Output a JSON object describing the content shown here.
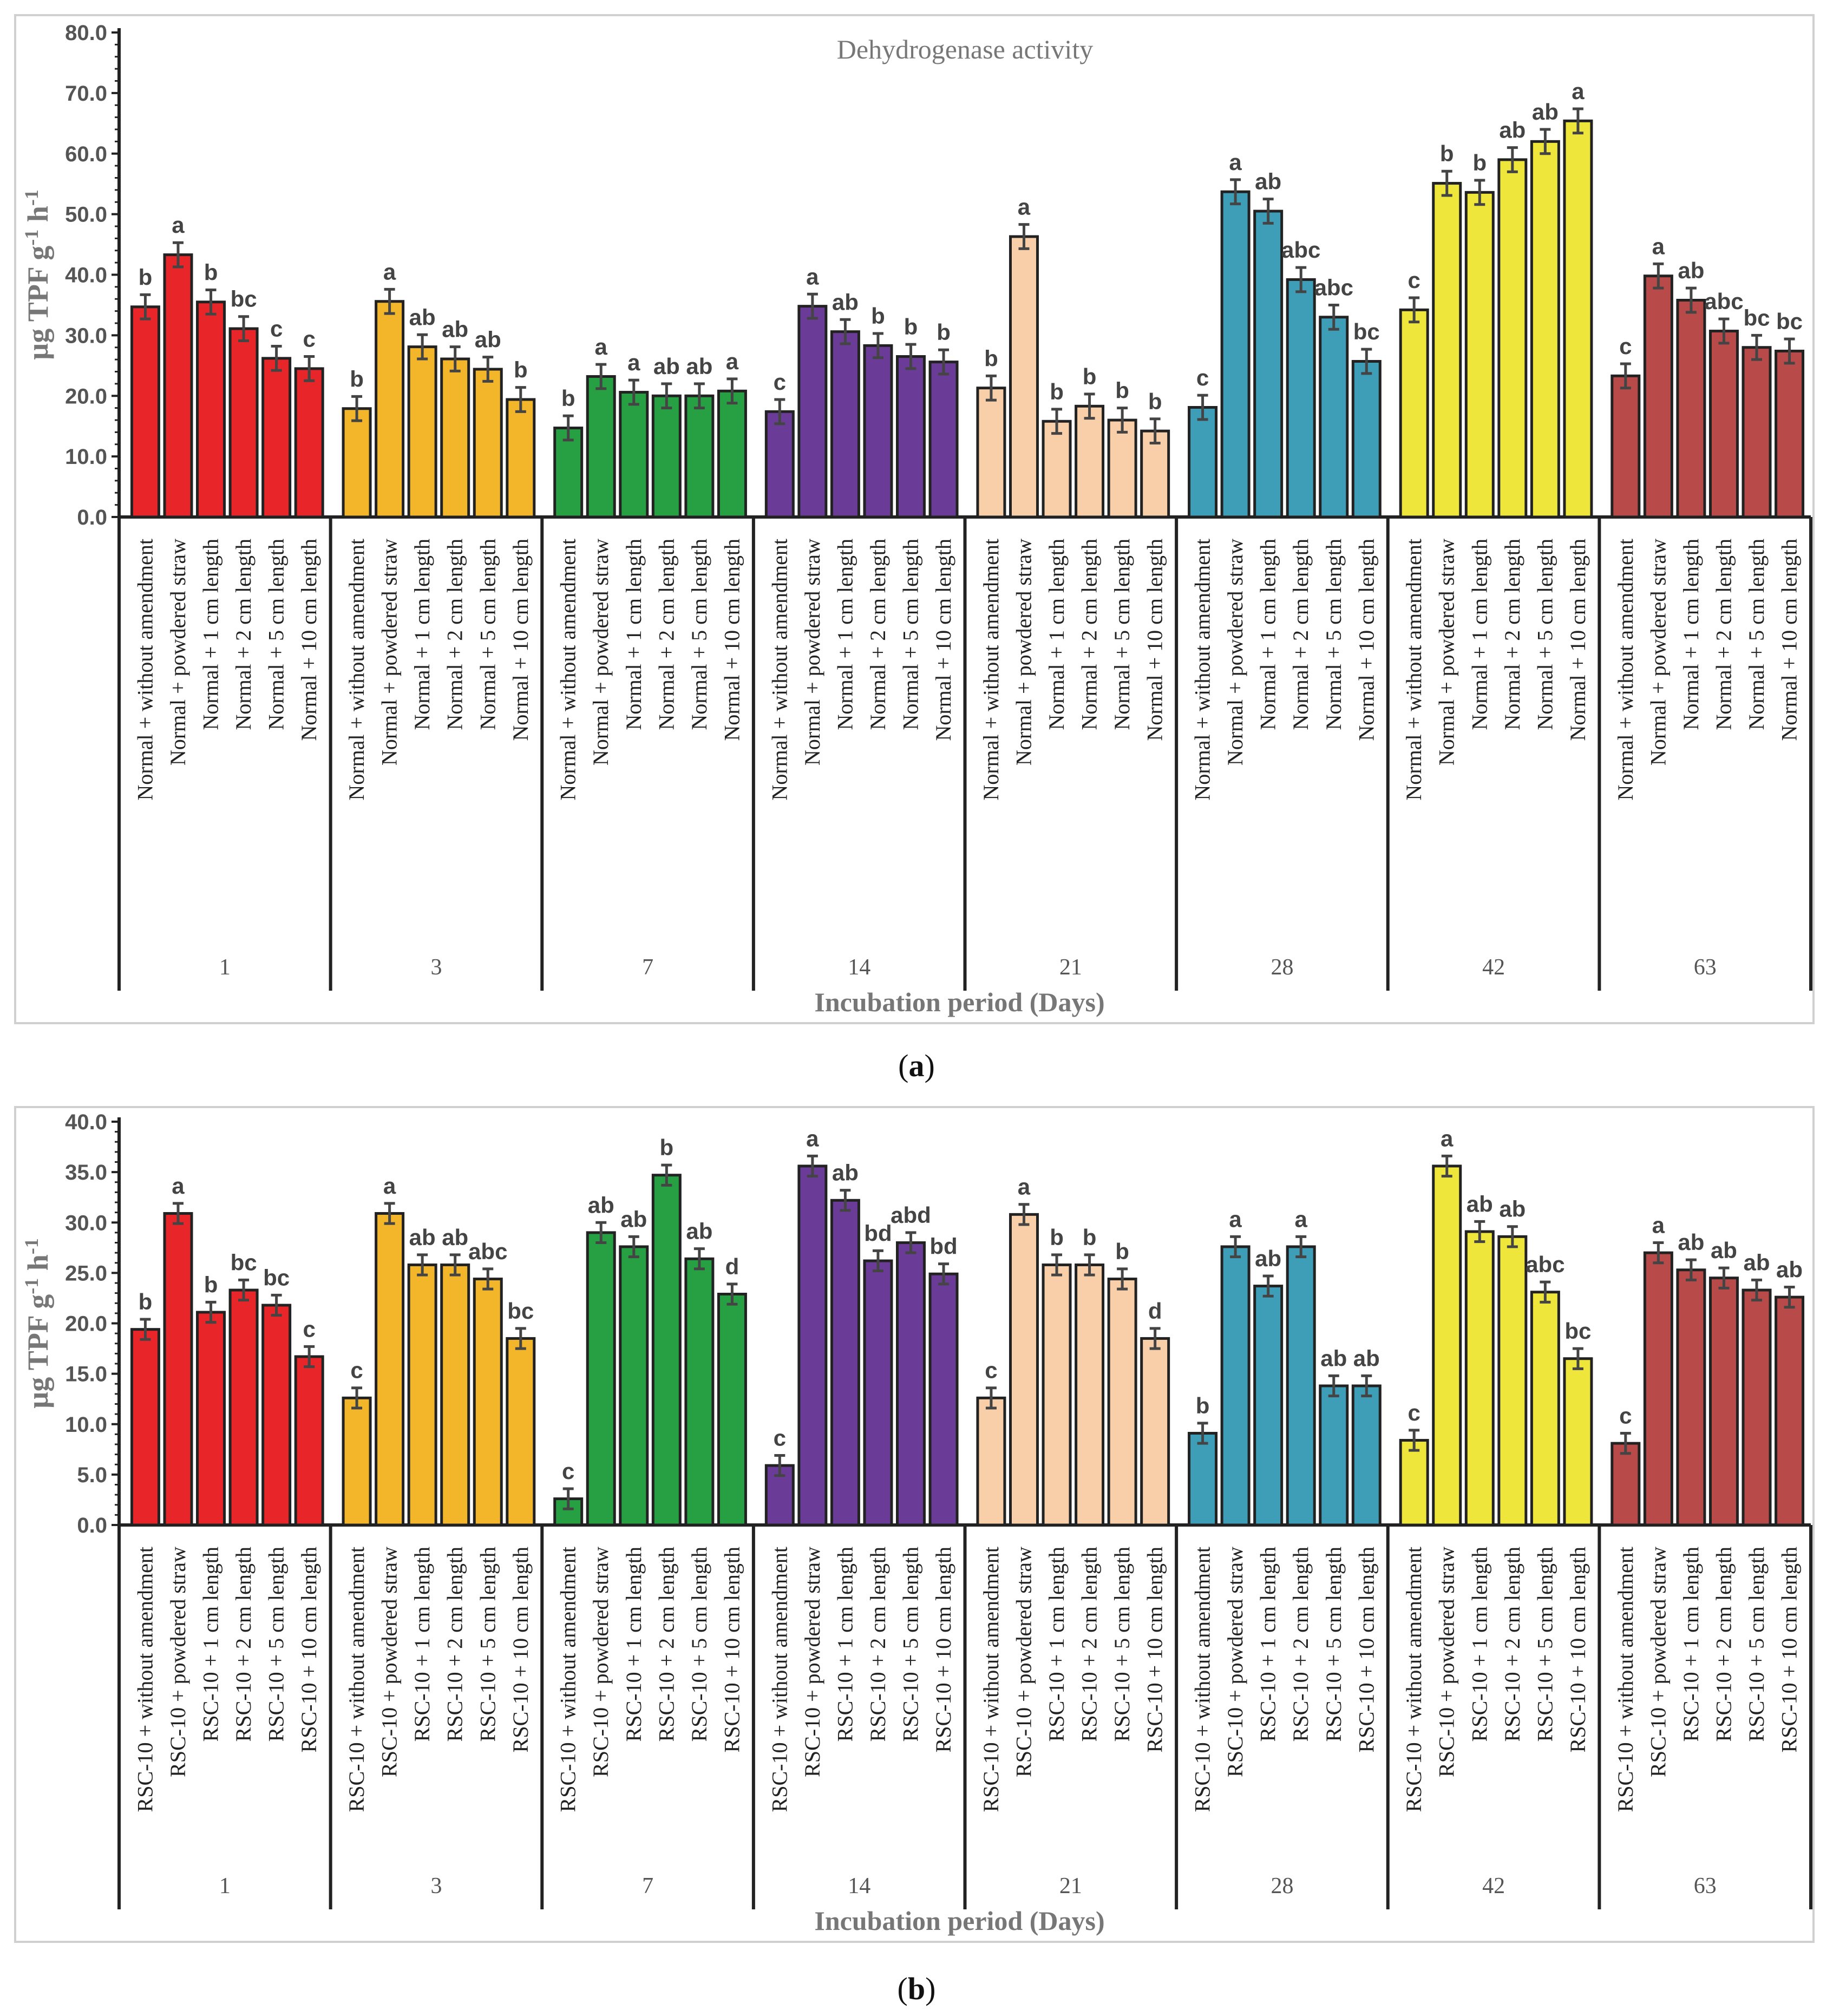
{
  "panels": [
    {
      "caption": "a",
      "chart_data": {
        "type": "bar",
        "title": "Dehydrogenase activity",
        "ylabel": "µg TPF g-1 h-1",
        "xlabel": "Incubation period (Days)",
        "ylim": [
          0,
          80
        ],
        "ytick_step": 10,
        "ytick_format": 1,
        "groups": [
          "1",
          "3",
          "7",
          "14",
          "21",
          "28",
          "42",
          "63"
        ],
        "categories": [
          "Normal + without amendment",
          "Normal + powdered straw",
          "Normal + 1 cm length",
          "Normal + 2 cm length",
          "Normal + 5 cm length",
          "Normal + 10 cm length"
        ],
        "colors": [
          "#e8262a",
          "#f3b62a",
          "#27a043",
          "#6b3c97",
          "#f8cfa8",
          "#3e9eb8",
          "#eee63a",
          "#b84a4a"
        ],
        "series": [
          {
            "day": "1",
            "values": [
              34.7,
              43.3,
              35.5,
              31.1,
              26.2,
              24.5
            ],
            "errors": [
              2,
              2,
              2,
              2,
              2,
              2
            ],
            "letters": [
              "b",
              "a",
              "b",
              "bc",
              "c",
              "c"
            ]
          },
          {
            "day": "3",
            "values": [
              17.9,
              35.6,
              28.1,
              26.1,
              24.4,
              19.4
            ],
            "errors": [
              2,
              2,
              2,
              2,
              2,
              2
            ],
            "letters": [
              "b",
              "a",
              "ab",
              "ab",
              "ab",
              "b"
            ]
          },
          {
            "day": "7",
            "values": [
              14.7,
              23.2,
              20.6,
              20.0,
              20.0,
              20.8
            ],
            "errors": [
              2,
              2,
              2,
              2,
              2,
              2
            ],
            "letters": [
              "b",
              "a",
              "a",
              "ab",
              "ab",
              "a"
            ]
          },
          {
            "day": "14",
            "values": [
              17.4,
              34.8,
              30.6,
              28.3,
              26.5,
              25.6
            ],
            "errors": [
              2,
              2,
              2,
              2,
              2,
              2
            ],
            "letters": [
              "c",
              "a",
              "ab",
              "b",
              "b",
              "b"
            ]
          },
          {
            "day": "21",
            "values": [
              21.3,
              46.3,
              15.8,
              18.3,
              16.0,
              14.2
            ],
            "errors": [
              2,
              2,
              2,
              2,
              2,
              2
            ],
            "letters": [
              "b",
              "a",
              "b",
              "b",
              "b",
              "b"
            ]
          },
          {
            "day": "28",
            "values": [
              18.1,
              53.7,
              50.5,
              39.2,
              33.0,
              25.7
            ],
            "errors": [
              2,
              2,
              2,
              2,
              2,
              2
            ],
            "letters": [
              "c",
              "a",
              "ab",
              "abc",
              "abc",
              "bc"
            ]
          },
          {
            "day": "42",
            "values": [
              34.2,
              55.1,
              53.6,
              59.0,
              62.0,
              65.4
            ],
            "errors": [
              2,
              2,
              2,
              2,
              2,
              2
            ],
            "letters": [
              "c",
              "b",
              "b",
              "ab",
              "ab",
              "a"
            ]
          },
          {
            "day": "63",
            "values": [
              23.3,
              39.8,
              35.8,
              30.7,
              28.0,
              27.4
            ],
            "errors": [
              2,
              2,
              2,
              2,
              2,
              2
            ],
            "letters": [
              "c",
              "a",
              "ab",
              "abc",
              "bc",
              "bc"
            ]
          }
        ]
      }
    },
    {
      "caption": "b",
      "chart_data": {
        "type": "bar",
        "title": "",
        "ylabel": "µg TPF g-1 h-1",
        "xlabel": "Incubation period (Days)",
        "ylim": [
          0,
          40
        ],
        "ytick_step": 5,
        "ytick_format": 1,
        "groups": [
          "1",
          "3",
          "7",
          "14",
          "21",
          "28",
          "42",
          "63"
        ],
        "categories": [
          "RSC-10 + without amendment",
          "RSC-10 + powdered straw",
          "RSC-10 + 1 cm length",
          "RSC-10 + 2 cm length",
          "RSC-10 + 5 cm length",
          "RSC-10 + 10 cm length"
        ],
        "colors": [
          "#e8262a",
          "#f3b62a",
          "#27a043",
          "#6b3c97",
          "#f8cfa8",
          "#3e9eb8",
          "#eee63a",
          "#b84a4a"
        ],
        "series": [
          {
            "day": "1",
            "values": [
              19.4,
              30.9,
              21.1,
              23.3,
              21.8,
              16.7
            ],
            "errors": [
              1,
              1,
              1,
              1,
              1,
              1
            ],
            "letters": [
              "b",
              "a",
              "b",
              "bc",
              "bc",
              "c"
            ]
          },
          {
            "day": "3",
            "values": [
              12.6,
              30.9,
              25.8,
              25.8,
              24.4,
              18.5
            ],
            "errors": [
              1,
              1,
              1,
              1,
              1,
              1
            ],
            "letters": [
              "c",
              "a",
              "ab",
              "ab",
              "abc",
              "bc"
            ]
          },
          {
            "day": "7",
            "values": [
              2.6,
              29.0,
              27.6,
              34.7,
              26.4,
              22.9
            ],
            "errors": [
              1,
              1,
              1,
              1,
              1,
              1
            ],
            "letters": [
              "c",
              "ab",
              "ab",
              "b",
              "ab",
              "d"
            ]
          },
          {
            "day": "14",
            "values": [
              5.9,
              35.6,
              32.2,
              26.2,
              28.0,
              24.9
            ],
            "errors": [
              1,
              1,
              1,
              1,
              1,
              1
            ],
            "letters": [
              "c",
              "a",
              "ab",
              "bd",
              "abd",
              "bd"
            ]
          },
          {
            "day": "21",
            "values": [
              12.6,
              30.8,
              25.8,
              25.8,
              24.4,
              18.5
            ],
            "errors": [
              1,
              1,
              1,
              1,
              1,
              1
            ],
            "letters": [
              "c",
              "a",
              "b",
              "b",
              "b",
              "d"
            ]
          },
          {
            "day": "28",
            "values": [
              9.1,
              27.6,
              23.7,
              27.6,
              13.8,
              13.8
            ],
            "errors": [
              1,
              1,
              1,
              1,
              1,
              1
            ],
            "letters": [
              "b",
              "a",
              "ab",
              "a",
              "ab",
              "ab"
            ]
          },
          {
            "day": "42",
            "values": [
              8.4,
              35.6,
              29.1,
              28.6,
              23.1,
              16.5
            ],
            "errors": [
              1,
              1,
              1,
              1,
              1,
              1
            ],
            "letters": [
              "c",
              "a",
              "ab",
              "ab",
              "abc",
              "bc"
            ]
          },
          {
            "day": "63",
            "values": [
              8.1,
              27.0,
              25.3,
              24.5,
              23.3,
              22.6
            ],
            "errors": [
              1,
              1,
              1,
              1,
              1,
              1
            ],
            "letters": [
              "c",
              "a",
              "ab",
              "ab",
              "ab",
              "ab"
            ]
          }
        ]
      }
    }
  ]
}
